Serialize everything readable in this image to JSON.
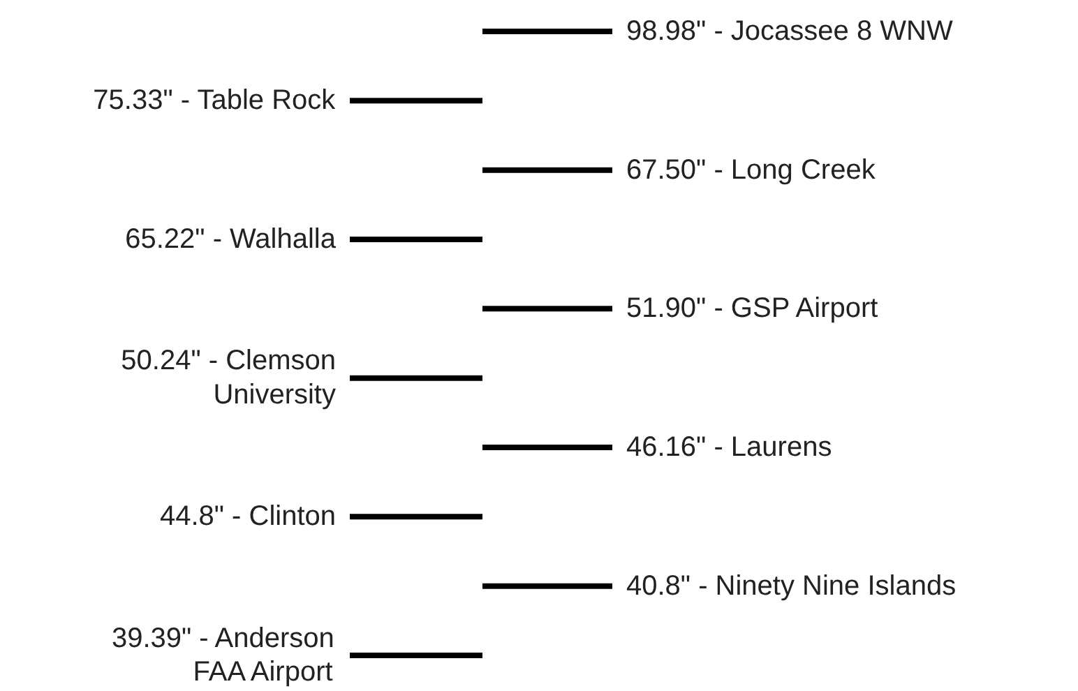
{
  "chart_data": {
    "type": "other",
    "values": [
      98.98,
      75.33,
      67.5,
      65.22,
      51.9,
      50.24,
      46.16,
      44.8,
      40.8,
      39.39
    ],
    "value_labels": [
      "98.98\" - Jocassee 8 WNW",
      "75.33\" - Table Rock",
      "67.50\" - Long Creek",
      "65.22\" - Walhalla",
      "51.90\" - GSP Airport",
      "50.24\" - Clemson University",
      "46.16\" - Laurens",
      "44.8\" - Clinton",
      "40.8\" - Ninety Nine Islands",
      "39.39\" - Anderson FAA Airport"
    ]
  }
}
